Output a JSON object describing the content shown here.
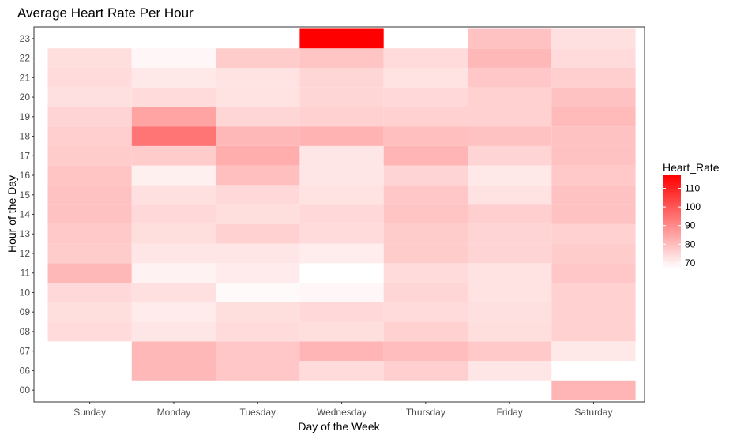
{
  "chart_data": {
    "type": "heatmap",
    "title": "Average Heart Rate Per Hour",
    "xlabel": "Day of the Week",
    "ylabel": "Hour of the Day",
    "x_categories": [
      "Sunday",
      "Monday",
      "Tuesday",
      "Wednesday",
      "Thursday",
      "Friday",
      "Saturday"
    ],
    "y_categories": [
      "00",
      "06",
      "07",
      "08",
      "09",
      "10",
      "11",
      "12",
      "13",
      "14",
      "15",
      "16",
      "17",
      "18",
      "19",
      "20",
      "21",
      "22",
      "23"
    ],
    "grid": false,
    "legend": {
      "title": "Heart_Rate",
      "placement": "right",
      "ticks": [
        70,
        80,
        90,
        100,
        110
      ],
      "range": [
        67,
        117
      ],
      "color_low": "#ffffff",
      "color_high": "#ff0000"
    },
    "cells": [
      {
        "x": "Sunday",
        "y": "08",
        "value": 74
      },
      {
        "x": "Sunday",
        "y": "09",
        "value": 73.5
      },
      {
        "x": "Sunday",
        "y": "10",
        "value": 74.5
      },
      {
        "x": "Sunday",
        "y": "11",
        "value": 81
      },
      {
        "x": "Sunday",
        "y": "12",
        "value": 77
      },
      {
        "x": "Sunday",
        "y": "13",
        "value": 77.5
      },
      {
        "x": "Sunday",
        "y": "14",
        "value": 79
      },
      {
        "x": "Sunday",
        "y": "15",
        "value": 79
      },
      {
        "x": "Sunday",
        "y": "16",
        "value": 78.5
      },
      {
        "x": "Sunday",
        "y": "17",
        "value": 77
      },
      {
        "x": "Sunday",
        "y": "18",
        "value": 76.5
      },
      {
        "x": "Sunday",
        "y": "19",
        "value": 75.5
      },
      {
        "x": "Sunday",
        "y": "20",
        "value": 73
      },
      {
        "x": "Sunday",
        "y": "21",
        "value": 74
      },
      {
        "x": "Sunday",
        "y": "22",
        "value": 73.5
      },
      {
        "x": "Monday",
        "y": "06",
        "value": 81
      },
      {
        "x": "Monday",
        "y": "07",
        "value": 81
      },
      {
        "x": "Monday",
        "y": "08",
        "value": 72
      },
      {
        "x": "Monday",
        "y": "09",
        "value": 71
      },
      {
        "x": "Monday",
        "y": "10",
        "value": 73
      },
      {
        "x": "Monday",
        "y": "11",
        "value": 69.5
      },
      {
        "x": "Monday",
        "y": "12",
        "value": 72
      },
      {
        "x": "Monday",
        "y": "13",
        "value": 73.5
      },
      {
        "x": "Monday",
        "y": "14",
        "value": 74.5
      },
      {
        "x": "Monday",
        "y": "15",
        "value": 73
      },
      {
        "x": "Monday",
        "y": "16",
        "value": 70
      },
      {
        "x": "Monday",
        "y": "17",
        "value": 77
      },
      {
        "x": "Monday",
        "y": "18",
        "value": 94
      },
      {
        "x": "Monday",
        "y": "19",
        "value": 85
      },
      {
        "x": "Monday",
        "y": "20",
        "value": 74
      },
      {
        "x": "Monday",
        "y": "21",
        "value": 71.5
      },
      {
        "x": "Monday",
        "y": "22",
        "value": 68.5
      },
      {
        "x": "Tuesday",
        "y": "06",
        "value": 78
      },
      {
        "x": "Tuesday",
        "y": "07",
        "value": 78
      },
      {
        "x": "Tuesday",
        "y": "08",
        "value": 74
      },
      {
        "x": "Tuesday",
        "y": "09",
        "value": 73.5
      },
      {
        "x": "Tuesday",
        "y": "10",
        "value": 68
      },
      {
        "x": "Tuesday",
        "y": "11",
        "value": 71
      },
      {
        "x": "Tuesday",
        "y": "12",
        "value": 72
      },
      {
        "x": "Tuesday",
        "y": "13",
        "value": 76
      },
      {
        "x": "Tuesday",
        "y": "14",
        "value": 73.5
      },
      {
        "x": "Tuesday",
        "y": "15",
        "value": 74.5
      },
      {
        "x": "Tuesday",
        "y": "16",
        "value": 79.5
      },
      {
        "x": "Tuesday",
        "y": "17",
        "value": 83
      },
      {
        "x": "Tuesday",
        "y": "18",
        "value": 81
      },
      {
        "x": "Tuesday",
        "y": "19",
        "value": 75
      },
      {
        "x": "Tuesday",
        "y": "20",
        "value": 72.5
      },
      {
        "x": "Tuesday",
        "y": "21",
        "value": 72.5
      },
      {
        "x": "Tuesday",
        "y": "22",
        "value": 77
      },
      {
        "x": "Wednesday",
        "y": "06",
        "value": 74
      },
      {
        "x": "Wednesday",
        "y": "07",
        "value": 81.5
      },
      {
        "x": "Wednesday",
        "y": "08",
        "value": 73.5
      },
      {
        "x": "Wednesday",
        "y": "09",
        "value": 74.5
      },
      {
        "x": "Wednesday",
        "y": "10",
        "value": 68.5
      },
      {
        "x": "Wednesday",
        "y": "11",
        "value": 67
      },
      {
        "x": "Wednesday",
        "y": "12",
        "value": 70.5
      },
      {
        "x": "Wednesday",
        "y": "13",
        "value": 74
      },
      {
        "x": "Wednesday",
        "y": "14",
        "value": 74.5
      },
      {
        "x": "Wednesday",
        "y": "15",
        "value": 72.5
      },
      {
        "x": "Wednesday",
        "y": "16",
        "value": 72
      },
      {
        "x": "Wednesday",
        "y": "17",
        "value": 72
      },
      {
        "x": "Wednesday",
        "y": "18",
        "value": 82
      },
      {
        "x": "Wednesday",
        "y": "19",
        "value": 76
      },
      {
        "x": "Wednesday",
        "y": "20",
        "value": 75
      },
      {
        "x": "Wednesday",
        "y": "21",
        "value": 75
      },
      {
        "x": "Wednesday",
        "y": "22",
        "value": 78.5
      },
      {
        "x": "Wednesday",
        "y": "23",
        "value": 117
      },
      {
        "x": "Thursday",
        "y": "06",
        "value": 76.5
      },
      {
        "x": "Thursday",
        "y": "07",
        "value": 80
      },
      {
        "x": "Thursday",
        "y": "08",
        "value": 76
      },
      {
        "x": "Thursday",
        "y": "09",
        "value": 74
      },
      {
        "x": "Thursday",
        "y": "10",
        "value": 75
      },
      {
        "x": "Thursday",
        "y": "11",
        "value": 74
      },
      {
        "x": "Thursday",
        "y": "12",
        "value": 77
      },
      {
        "x": "Thursday",
        "y": "13",
        "value": 77
      },
      {
        "x": "Thursday",
        "y": "14",
        "value": 78.5
      },
      {
        "x": "Thursday",
        "y": "15",
        "value": 78
      },
      {
        "x": "Thursday",
        "y": "16",
        "value": 75.5
      },
      {
        "x": "Thursday",
        "y": "17",
        "value": 81.5
      },
      {
        "x": "Thursday",
        "y": "18",
        "value": 79.5
      },
      {
        "x": "Thursday",
        "y": "19",
        "value": 76
      },
      {
        "x": "Thursday",
        "y": "20",
        "value": 74.5
      },
      {
        "x": "Thursday",
        "y": "21",
        "value": 72.5
      },
      {
        "x": "Thursday",
        "y": "22",
        "value": 74
      },
      {
        "x": "Friday",
        "y": "06",
        "value": 72
      },
      {
        "x": "Friday",
        "y": "07",
        "value": 77.5
      },
      {
        "x": "Friday",
        "y": "08",
        "value": 73.5
      },
      {
        "x": "Friday",
        "y": "09",
        "value": 73
      },
      {
        "x": "Friday",
        "y": "10",
        "value": 72.5
      },
      {
        "x": "Friday",
        "y": "11",
        "value": 72.5
      },
      {
        "x": "Friday",
        "y": "12",
        "value": 75.5
      },
      {
        "x": "Friday",
        "y": "13",
        "value": 75.5
      },
      {
        "x": "Friday",
        "y": "14",
        "value": 76.5
      },
      {
        "x": "Friday",
        "y": "15",
        "value": 72.5
      },
      {
        "x": "Friday",
        "y": "16",
        "value": 71.5
      },
      {
        "x": "Friday",
        "y": "17",
        "value": 75.5
      },
      {
        "x": "Friday",
        "y": "18",
        "value": 79
      },
      {
        "x": "Friday",
        "y": "19",
        "value": 76
      },
      {
        "x": "Friday",
        "y": "20",
        "value": 76
      },
      {
        "x": "Friday",
        "y": "21",
        "value": 78
      },
      {
        "x": "Friday",
        "y": "22",
        "value": 81
      },
      {
        "x": "Friday",
        "y": "23",
        "value": 79
      },
      {
        "x": "Saturday",
        "y": "00",
        "value": 81.5
      },
      {
        "x": "Saturday",
        "y": "07",
        "value": 71.5
      },
      {
        "x": "Saturday",
        "y": "08",
        "value": 76
      },
      {
        "x": "Saturday",
        "y": "09",
        "value": 76
      },
      {
        "x": "Saturday",
        "y": "10",
        "value": 76
      },
      {
        "x": "Saturday",
        "y": "11",
        "value": 78
      },
      {
        "x": "Saturday",
        "y": "12",
        "value": 77
      },
      {
        "x": "Saturday",
        "y": "13",
        "value": 76
      },
      {
        "x": "Saturday",
        "y": "14",
        "value": 79
      },
      {
        "x": "Saturday",
        "y": "15",
        "value": 79
      },
      {
        "x": "Saturday",
        "y": "16",
        "value": 77.5
      },
      {
        "x": "Saturday",
        "y": "17",
        "value": 79
      },
      {
        "x": "Saturday",
        "y": "18",
        "value": 79
      },
      {
        "x": "Saturday",
        "y": "19",
        "value": 80.5
      },
      {
        "x": "Saturday",
        "y": "20",
        "value": 79
      },
      {
        "x": "Saturday",
        "y": "21",
        "value": 76.5
      },
      {
        "x": "Saturday",
        "y": "22",
        "value": 74
      },
      {
        "x": "Saturday",
        "y": "23",
        "value": 73
      }
    ]
  }
}
